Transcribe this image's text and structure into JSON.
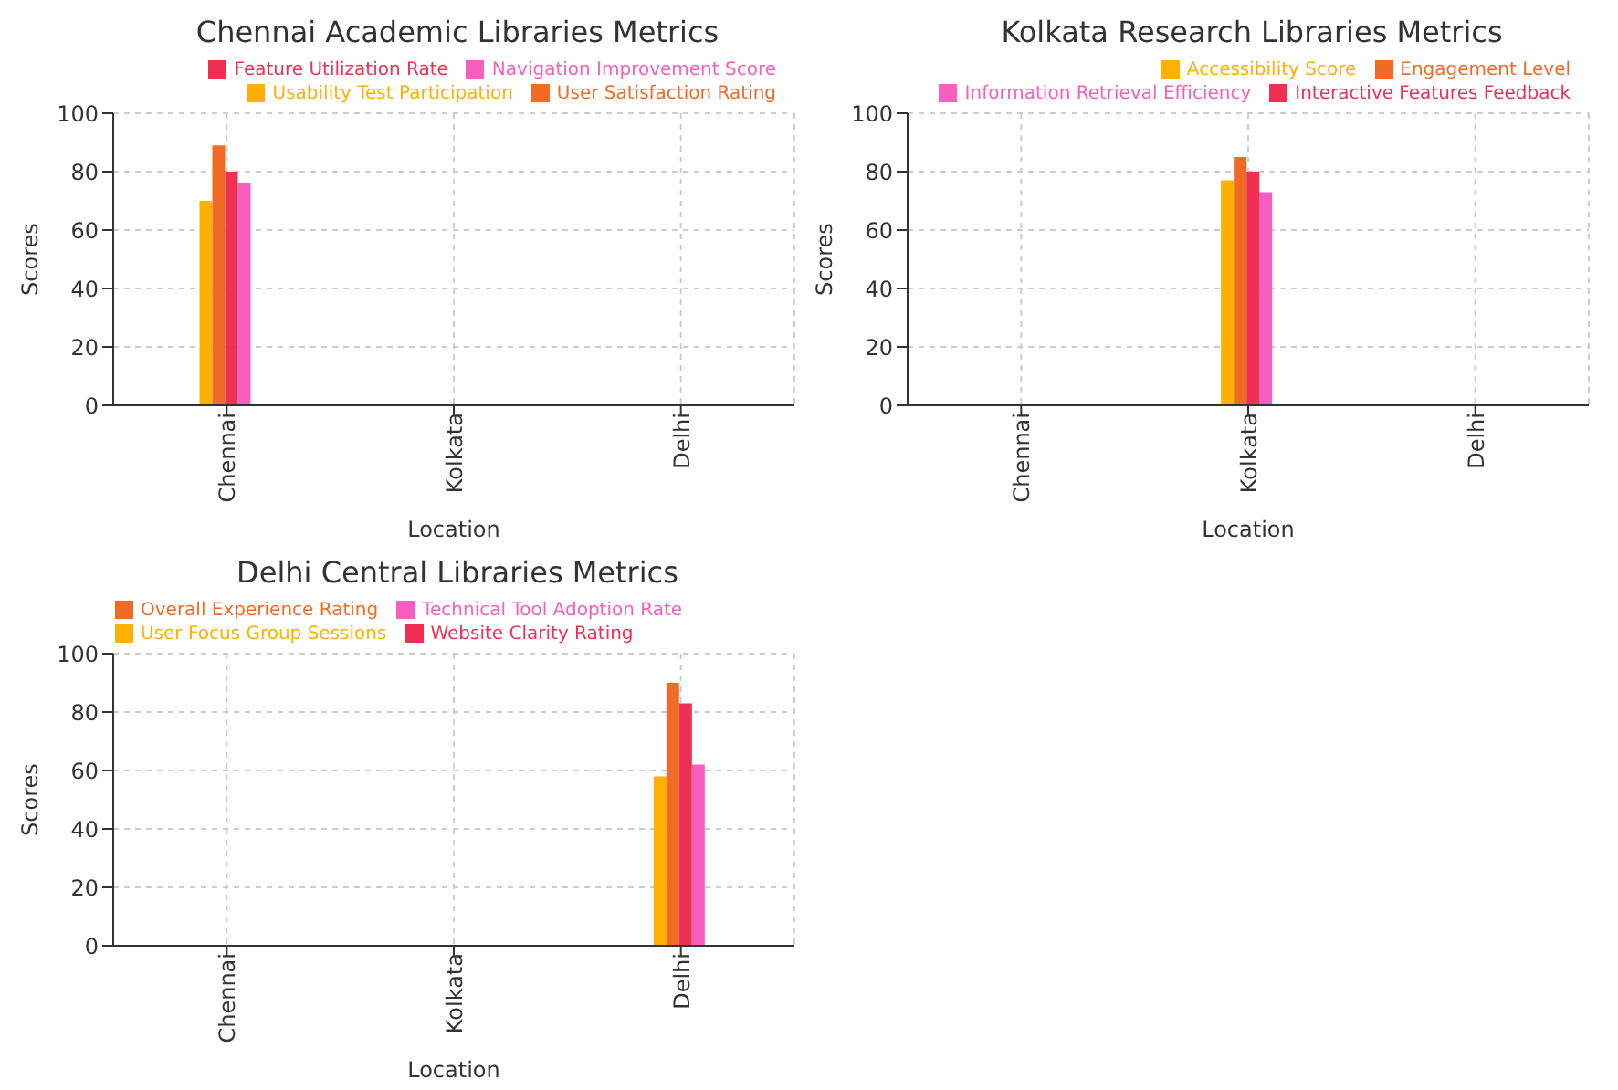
{
  "chart_data": [
    {
      "type": "bar",
      "title": "Chennai Academic Libraries Metrics",
      "xlabel": "Location",
      "ylabel": "Scores",
      "categories": [
        "Chennai",
        "Kolkata",
        "Delhi"
      ],
      "ylim": [
        0,
        100
      ],
      "yticks": [
        0,
        20,
        40,
        60,
        80,
        100
      ],
      "grid": true,
      "legend": "top right",
      "series": [
        {
          "name": "Usability Test Participation",
          "color": "#ffb000",
          "values": [
            70,
            null,
            null
          ]
        },
        {
          "name": "User Satisfaction Rating",
          "color": "#f26b25",
          "values": [
            89,
            null,
            null
          ]
        },
        {
          "name": "Feature Utilization Rate",
          "color": "#f03052",
          "values": [
            80,
            null,
            null
          ]
        },
        {
          "name": "Navigation Improvement Score",
          "color": "#f75fbe",
          "values": [
            76,
            null,
            null
          ]
        }
      ]
    },
    {
      "type": "bar",
      "title": "Kolkata Research Libraries Metrics",
      "xlabel": "Location",
      "ylabel": "Scores",
      "categories": [
        "Chennai",
        "Kolkata",
        "Delhi"
      ],
      "ylim": [
        0,
        100
      ],
      "yticks": [
        0,
        20,
        40,
        60,
        80,
        100
      ],
      "grid": true,
      "legend": "top right",
      "series": [
        {
          "name": "Accessibility Score",
          "color": "#ffb000",
          "values": [
            null,
            77,
            null
          ]
        },
        {
          "name": "Engagement Level",
          "color": "#f26b25",
          "values": [
            null,
            85,
            null
          ]
        },
        {
          "name": "Interactive Features Feedback",
          "color": "#f03052",
          "values": [
            null,
            80,
            null
          ]
        },
        {
          "name": "Information Retrieval Efficiency",
          "color": "#f75fbe",
          "values": [
            null,
            73,
            null
          ]
        }
      ]
    },
    {
      "type": "bar",
      "title": "Delhi Central Libraries Metrics",
      "xlabel": "Location",
      "ylabel": "Scores",
      "categories": [
        "Chennai",
        "Kolkata",
        "Delhi"
      ],
      "ylim": [
        0,
        100
      ],
      "yticks": [
        0,
        20,
        40,
        60,
        80,
        100
      ],
      "grid": true,
      "legend": "top left",
      "series": [
        {
          "name": "User Focus Group Sessions",
          "color": "#ffb000",
          "values": [
            null,
            null,
            58
          ]
        },
        {
          "name": "Overall Experience Rating",
          "color": "#f26b25",
          "values": [
            null,
            null,
            90
          ]
        },
        {
          "name": "Website Clarity Rating",
          "color": "#f03052",
          "values": [
            null,
            null,
            83
          ]
        },
        {
          "name": "Technical Tool Adoption Rate",
          "color": "#f75fbe",
          "values": [
            null,
            null,
            62
          ]
        }
      ]
    }
  ]
}
